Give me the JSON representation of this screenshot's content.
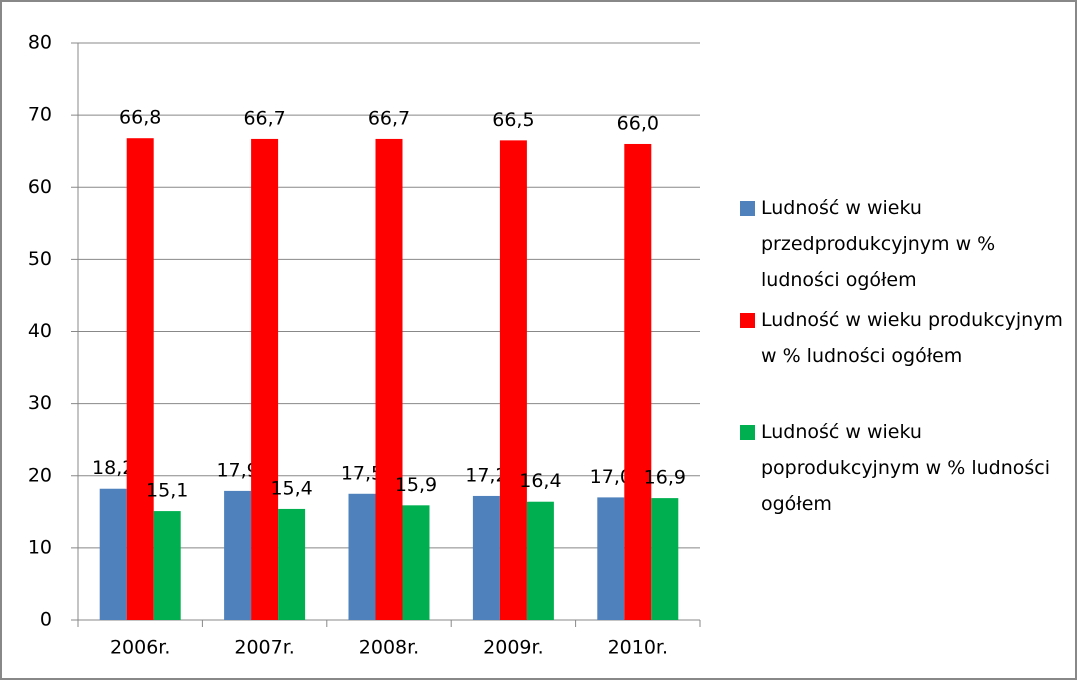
{
  "chart_data": {
    "type": "bar",
    "categories": [
      "2006r.",
      "2007r.",
      "2008r.",
      "2009r.",
      "2010r."
    ],
    "series": [
      {
        "name": "Ludność w wieku przedprodukcyjnym w % ludności ogółem",
        "color": "#4f81bd",
        "values": [
          18.2,
          17.9,
          17.5,
          17.2,
          17.0
        ],
        "value_labels": [
          "18,2",
          "17,9",
          "17,5",
          "17,2",
          "17,0"
        ]
      },
      {
        "name": "Ludność w wieku produkcyjnym w % ludności ogółem",
        "color": "#ff0000",
        "values": [
          66.8,
          66.7,
          66.7,
          66.5,
          66.0
        ],
        "value_labels": [
          "66,8",
          "66,7",
          "66,7",
          "66,5",
          "66,0"
        ]
      },
      {
        "name": "Ludność w wieku poprodukcyjnym w % ludności ogółem",
        "color": "#00b050",
        "values": [
          15.1,
          15.4,
          15.9,
          16.4,
          16.9
        ],
        "value_labels": [
          "15,1",
          "15,4",
          "15,9",
          "16,4",
          "16,9"
        ]
      }
    ],
    "ylim": [
      0,
      80
    ],
    "yticks": [
      0,
      10,
      20,
      30,
      40,
      50,
      60,
      70,
      80
    ],
    "grid": true,
    "legend": "right"
  }
}
